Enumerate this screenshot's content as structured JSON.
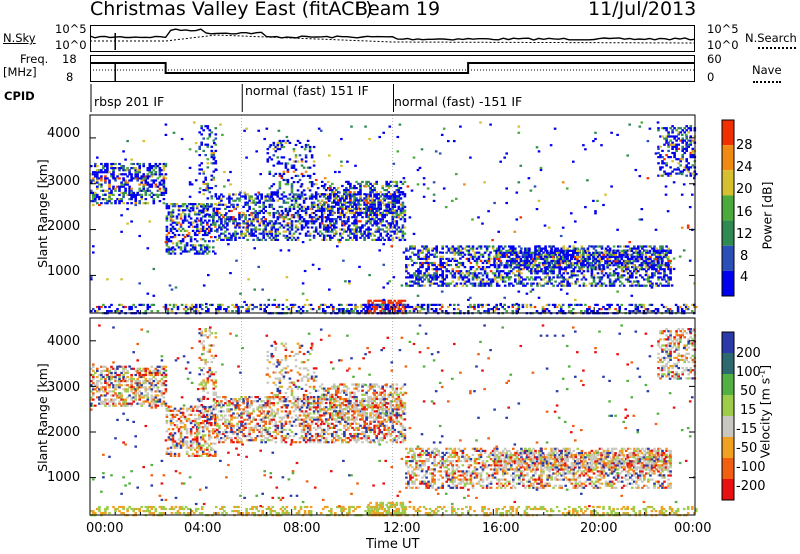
{
  "header": {
    "station": "Christmas Valley East (fitACF)",
    "beam": "Beam 19",
    "date": "11/Jul/2013"
  },
  "status_panel": {
    "nsky_label": "N.Sky",
    "nsky_ticks": [
      "10^5",
      "10^0"
    ],
    "nsearch_label": "N.Search",
    "nsearch_ticks": [
      "10^5",
      "10^0"
    ],
    "freq_label_line1": "Freq.",
    "freq_label_line2": "[MHz]",
    "freq_ticks": [
      "18",
      "8"
    ],
    "nave_label": "Nave",
    "nave_ticks": [
      "60",
      "0"
    ]
  },
  "cpid": {
    "label": "CPID",
    "segments": [
      {
        "label": "rbsp 201 IF",
        "start_h": 0,
        "end_h": 6
      },
      {
        "label": "normal (fast) 151 IF",
        "start_h": 6,
        "end_h": 12
      },
      {
        "label": "normal (fast) -151 IF",
        "start_h": 12,
        "end_h": 24
      }
    ]
  },
  "chart_data": [
    {
      "type": "heatmap",
      "quantity": "power",
      "ylabel": "Slant Range [km]",
      "xlabel": "Time UT",
      "xlim": [
        "00:00",
        "24:00"
      ],
      "ylim": [
        180,
        4500
      ],
      "y_ticks": [
        "1000",
        "2000",
        "3000",
        "4000"
      ],
      "colorbar": {
        "label": "Power [dB]",
        "ticks": [
          "4",
          "8",
          "12",
          "16",
          "20",
          "24",
          "28"
        ],
        "range": [
          0,
          30
        ],
        "colors": [
          "#0000ee",
          "#2a4fb8",
          "#2f8a52",
          "#4aaa3a",
          "#d6c030",
          "#f08a10",
          "#f03000"
        ]
      }
    },
    {
      "type": "heatmap",
      "quantity": "velocity",
      "ylabel": "Slant Range [km]",
      "xlabel": "Time UT",
      "xlim": [
        "00:00",
        "24:00"
      ],
      "ylim": [
        180,
        4500
      ],
      "y_ticks": [
        "1000",
        "2000",
        "3000",
        "4000"
      ],
      "colorbar": {
        "label_main": "Velocity [m s",
        "label_sup": "-1",
        "label_end": "]",
        "ticks": [
          "200",
          "100",
          "50",
          "15",
          "-15",
          "-50",
          "-100",
          "-200"
        ],
        "range": [
          -250,
          250
        ],
        "colors": [
          "#2a3aa8",
          "#2c6a70",
          "#52b040",
          "#9ccc4a",
          "#c8c8c0",
          "#f2a020",
          "#f06010",
          "#e81010"
        ]
      }
    }
  ],
  "time_axis": {
    "labels": [
      "00:00",
      "04:00",
      "08:00",
      "12:00",
      "16:00",
      "20:00",
      "00:00"
    ],
    "title": "Time UT"
  }
}
